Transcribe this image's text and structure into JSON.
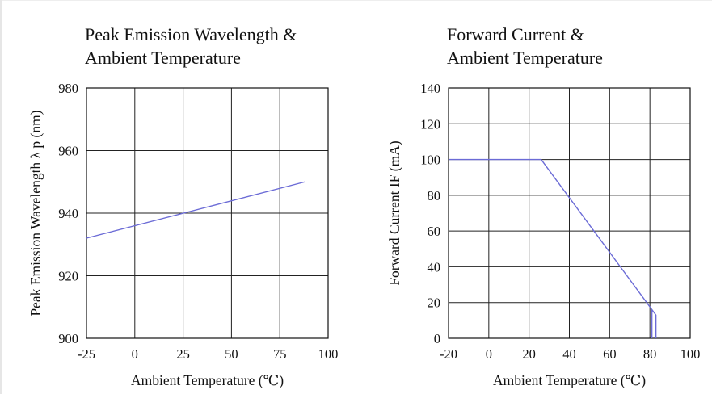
{
  "chart_data": [
    {
      "type": "line",
      "title_lines": [
        "Peak Emission Wavelength &",
        "Ambient Temperature"
      ],
      "xlabel": "Ambient Temperature (℃)",
      "ylabel": "Peak Emission Wavelength  λ p (nm)",
      "xlim": [
        -25,
        100
      ],
      "ylim": [
        900,
        980
      ],
      "xticks": [
        -25,
        0,
        25,
        50,
        75,
        100
      ],
      "yticks": [
        900,
        920,
        940,
        960,
        980
      ],
      "grid": true,
      "series": [
        {
          "x": [
            -25,
            88
          ],
          "y": [
            932,
            950
          ]
        }
      ],
      "line_color": "#6b6bd6"
    },
    {
      "type": "line",
      "title_lines": [
        "Forward Current &",
        "Ambient Temperature"
      ],
      "xlabel": "Ambient Temperature (℃)",
      "ylabel": "Forward Current IF (mA)",
      "xlim": [
        -20,
        100
      ],
      "ylim": [
        0,
        140
      ],
      "xticks": [
        -20,
        0,
        20,
        40,
        60,
        80,
        100
      ],
      "yticks": [
        0,
        20,
        40,
        60,
        80,
        100,
        120,
        140
      ],
      "grid": true,
      "series": [
        {
          "x": [
            -20,
            26,
            83,
            83
          ],
          "y": [
            100,
            100,
            13,
            0
          ]
        },
        {
          "x": [
            81,
            81
          ],
          "y": [
            16,
            0
          ]
        }
      ],
      "line_color": "#6b6bd6"
    }
  ]
}
